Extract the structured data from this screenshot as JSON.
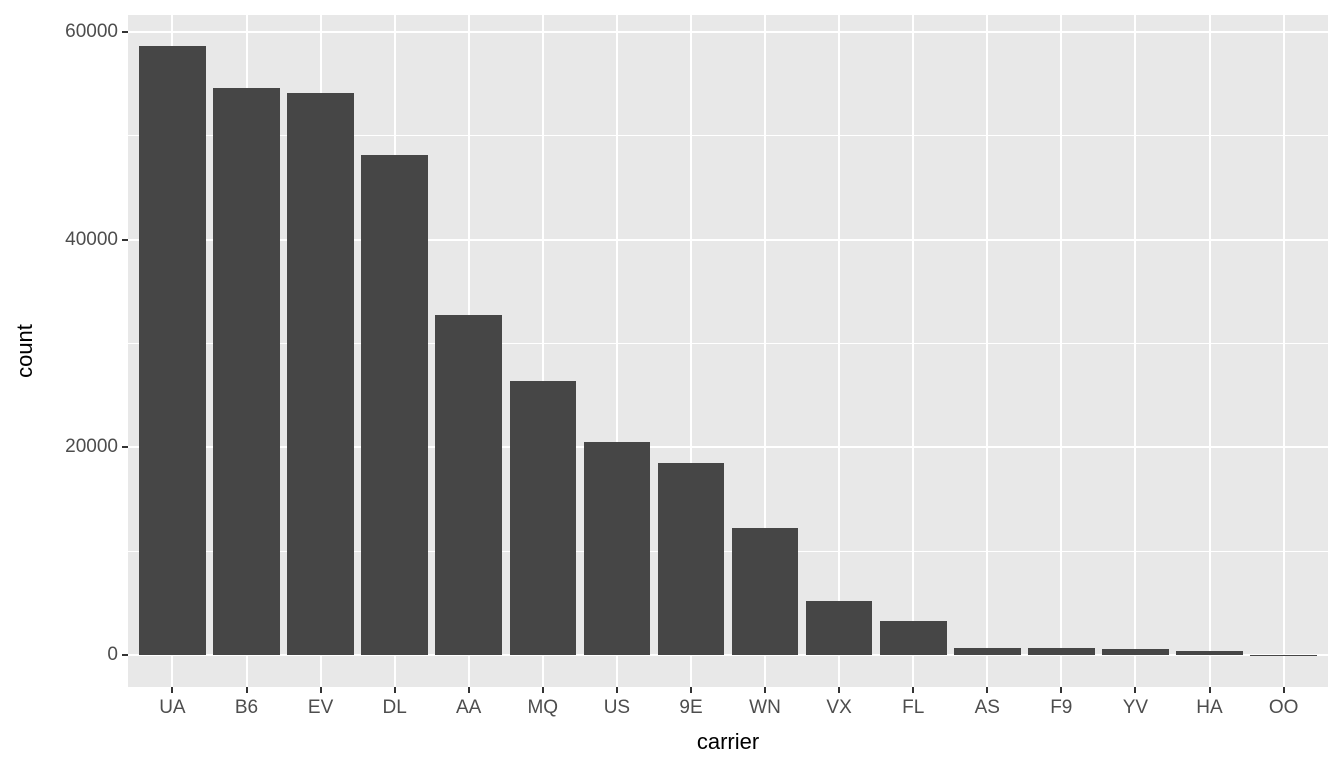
{
  "chart_data": {
    "type": "bar",
    "title": "",
    "xlabel": "carrier",
    "ylabel": "count",
    "categories": [
      "UA",
      "B6",
      "EV",
      "DL",
      "AA",
      "MQ",
      "US",
      "9E",
      "WN",
      "VX",
      "FL",
      "AS",
      "F9",
      "YV",
      "HA",
      "OO"
    ],
    "values": [
      58665,
      54635,
      54173,
      48110,
      32729,
      26397,
      20536,
      18460,
      12275,
      5162,
      3260,
      714,
      685,
      601,
      342,
      32
    ],
    "yticks": [
      0,
      20000,
      40000,
      60000
    ],
    "ytick_labels": [
      "0",
      "20000",
      "40000",
      "60000"
    ],
    "minor_yticks": [
      10000,
      30000,
      50000
    ],
    "ylim": [
      -2933,
      61598
    ],
    "bar_width_fraction": 0.9,
    "grid": "major and minor horizontal white lines, major vertical white lines at category centers",
    "legend": false,
    "colors": {
      "bar_fill": "#464646",
      "panel_background": "#E8E8E8",
      "gridline": "#FFFFFF",
      "tick_text": "#4D4D4D",
      "axis_title_text": "#000000",
      "tick_mark": "#333333",
      "figure_background": "#FFFFFF"
    }
  }
}
